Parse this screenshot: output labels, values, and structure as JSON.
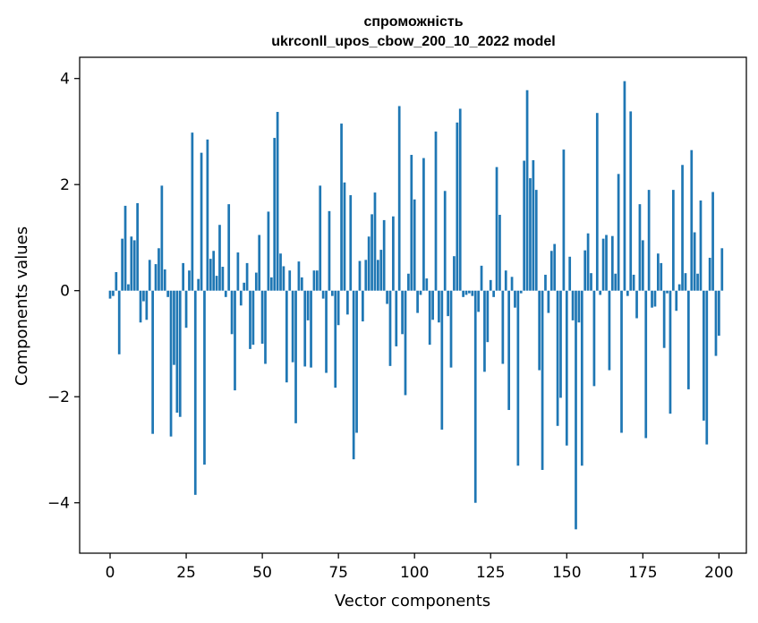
{
  "chart_data": {
    "type": "bar",
    "title": "спроможність",
    "subtitle": "ukrconll_upos_cbow_200_10_2022 model",
    "xlabel": "Vector components",
    "ylabel": "Components values",
    "xlim": [
      -10,
      209
    ],
    "ylim": [
      -4.95,
      4.4
    ],
    "xticks": [
      0,
      25,
      50,
      75,
      100,
      125,
      150,
      175,
      200
    ],
    "yticks": [
      -4,
      -2,
      0,
      2,
      4
    ],
    "ytick_labels": [
      "−4",
      "−2",
      "0",
      "2",
      "4"
    ],
    "grid": false,
    "color": "#1f77b4",
    "values": [
      -0.15,
      -0.1,
      0.35,
      -1.2,
      0.98,
      1.6,
      0.12,
      1.02,
      0.95,
      1.65,
      -0.6,
      -0.2,
      -0.55,
      0.58,
      -2.7,
      0.5,
      0.8,
      1.98,
      0.4,
      -0.12,
      -2.75,
      -1.4,
      -2.3,
      -2.38,
      0.52,
      -0.7,
      0.38,
      2.98,
      -3.85,
      0.22,
      2.6,
      -3.28,
      2.85,
      0.6,
      0.75,
      0.28,
      1.24,
      0.45,
      -0.12,
      1.63,
      -0.82,
      -1.88,
      0.72,
      -0.28,
      0.15,
      0.52,
      -1.1,
      -1.02,
      0.34,
      1.05,
      -1.0,
      -1.38,
      1.49,
      0.25,
      2.88,
      3.37,
      0.7,
      0.46,
      -1.73,
      0.38,
      -1.35,
      -2.5,
      0.55,
      0.25,
      -1.43,
      -0.56,
      -1.45,
      0.38,
      0.38,
      1.98,
      -0.15,
      -1.55,
      1.5,
      -0.1,
      -1.83,
      -0.65,
      3.15,
      2.04,
      -0.45,
      1.8,
      -3.18,
      -2.68,
      0.56,
      -0.58,
      0.58,
      1.02,
      1.44,
      1.85,
      0.58,
      0.77,
      1.33,
      -0.25,
      -1.42,
      1.4,
      -1.05,
      3.48,
      -0.82,
      -1.97,
      0.32,
      2.56,
      1.72,
      -0.42,
      -0.08,
      2.5,
      0.23,
      -1.02,
      -0.55,
      3.0,
      -0.6,
      -2.62,
      1.88,
      -0.48,
      -1.45,
      0.65,
      3.17,
      3.43,
      -0.12,
      -0.08,
      -0.05,
      -0.1,
      -4.0,
      -0.4,
      0.47,
      -1.53,
      -0.97,
      0.2,
      -0.12,
      2.33,
      1.43,
      -1.38,
      0.38,
      -2.25,
      0.26,
      -0.32,
      -3.3,
      -0.05,
      2.45,
      3.78,
      2.12,
      2.46,
      1.9,
      -1.5,
      -3.38,
      0.3,
      -0.42,
      0.75,
      0.88,
      -2.55,
      -2.02,
      2.66,
      -2.92,
      0.64,
      -0.56,
      -4.5,
      -0.6,
      -3.3,
      0.76,
      1.08,
      0.33,
      -1.8,
      3.35,
      -0.08,
      0.98,
      1.05,
      -1.5,
      1.03,
      0.32,
      2.2,
      -2.68,
      3.95,
      -0.1,
      3.38,
      0.3,
      -0.52,
      1.63,
      0.95,
      -2.78,
      1.9,
      -0.32,
      -0.3,
      0.7,
      0.52,
      -1.08,
      -0.05,
      -2.32,
      1.9,
      -0.38,
      0.12,
      2.37,
      0.33,
      -1.86,
      2.65,
      1.1,
      0.32,
      1.7,
      -2.45,
      -2.9,
      0.62,
      1.86,
      -1.23,
      -0.85,
      0.8
    ]
  }
}
